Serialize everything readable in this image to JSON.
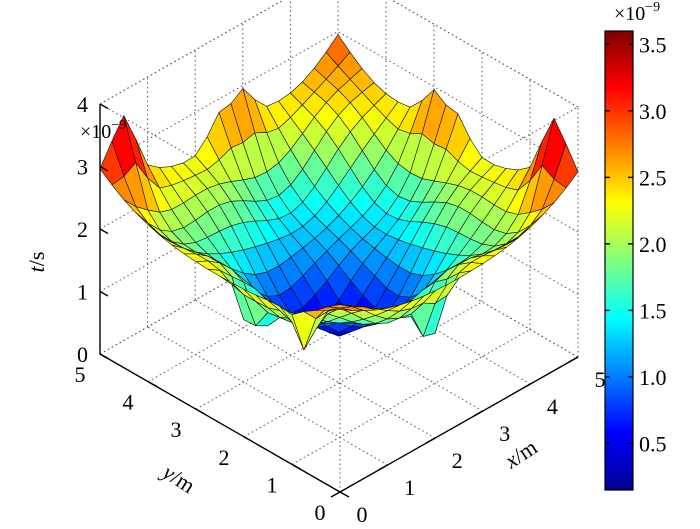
{
  "chart_data": {
    "type": "surface",
    "title": "",
    "xlabel": {
      "var": "x",
      "unit": "/m"
    },
    "ylabel": {
      "var": "y",
      "unit": "/m"
    },
    "zlabel": {
      "var": "t",
      "unit": "/s"
    },
    "xlim": [
      0,
      5
    ],
    "ylim": [
      0,
      5
    ],
    "zlim": [
      0,
      4
    ],
    "x_ticks": [
      "0",
      "1",
      "2",
      "3",
      "4",
      "5"
    ],
    "y_ticks": [
      "0",
      "1",
      "2",
      "3",
      "4",
      "5"
    ],
    "z_ticks": [
      "0",
      "1",
      "2",
      "3",
      "4"
    ],
    "z_exponent": "×10",
    "z_exponent_power": "−9",
    "grid": true,
    "colormap": "jet",
    "colorbar": {
      "range": [
        0.15,
        3.6
      ],
      "ticks": [
        "0.5",
        "1.0",
        "1.5",
        "2.0",
        "2.5",
        "3.0",
        "3.5"
      ],
      "tick_values": [
        0.5,
        1.0,
        1.5,
        2.0,
        2.5,
        3.0,
        3.5
      ],
      "exponent": "×10",
      "exponent_power": "−9",
      "placement": "right"
    },
    "surface": {
      "grid_points": 21,
      "description": "travel time t(x,y) in units of 1e-9 s; minimum ~0.3 near centre (2.5, 2.5), rising to ~2.2-3.3 towards the edges, spiky peaks near (0.5,5), (4.5,0.5) and along edges",
      "center": [
        2.5,
        2.5
      ],
      "min_value": 0.3,
      "corner_value": 3.0,
      "peaks": [
        {
          "x": 0.5,
          "y": 5.0,
          "t": 3.2
        },
        {
          "x": 5.0,
          "y": 0.5,
          "t": 3.2
        },
        {
          "x": 5.0,
          "y": 2.5,
          "t": 2.6
        },
        {
          "x": 2.5,
          "y": 5.0,
          "t": 2.6
        },
        {
          "x": 3.0,
          "y": 5.0,
          "t": 2.7
        },
        {
          "x": 5.0,
          "y": 3.0,
          "t": 2.7
        }
      ]
    }
  }
}
